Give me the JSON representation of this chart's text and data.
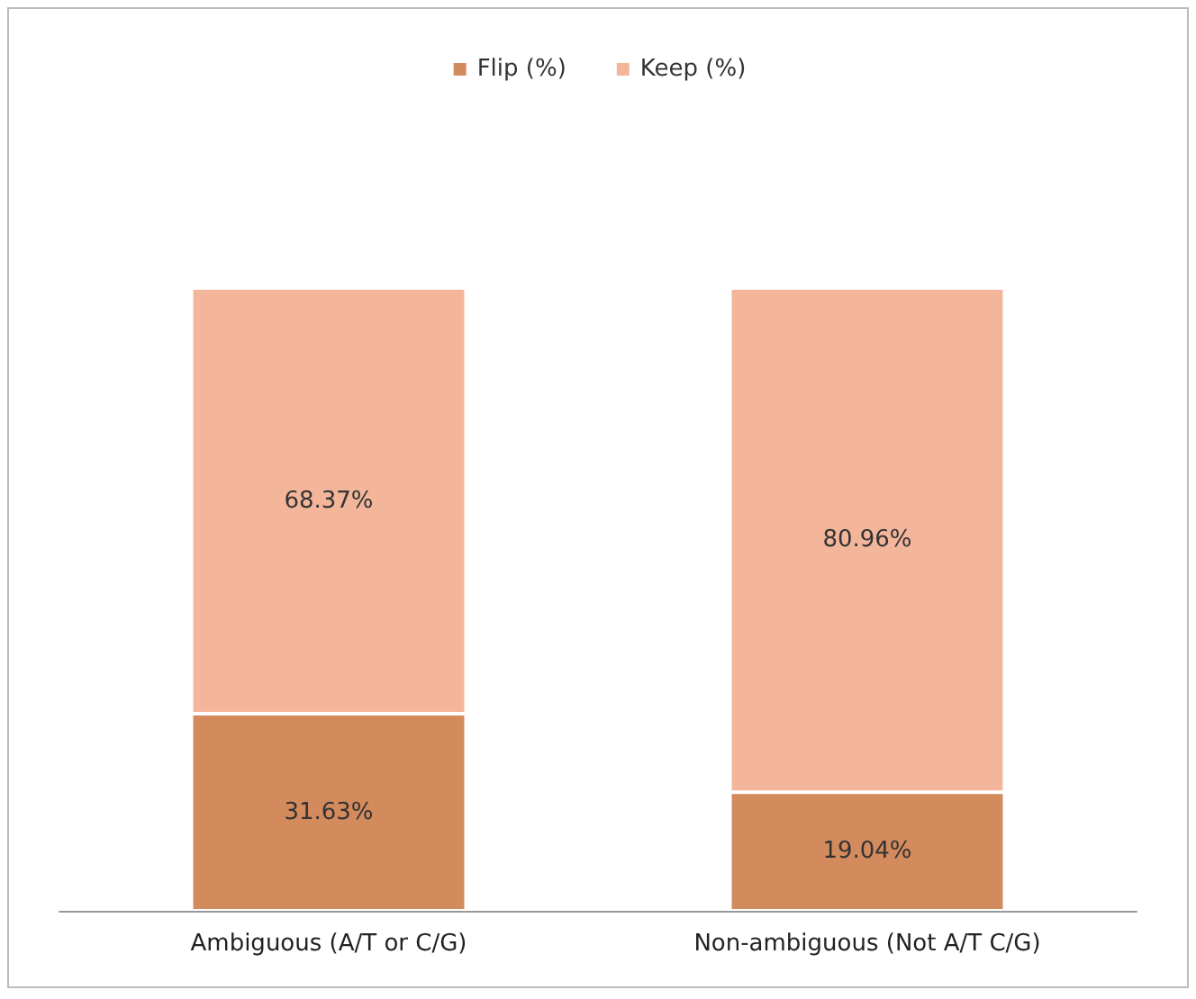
{
  "chart_data": {
    "type": "bar",
    "stacked": true,
    "categories": [
      "Ambiguous (A/T or C/G)",
      "Non-ambiguous (Not A/T C/G)"
    ],
    "series": [
      {
        "name": "Flip (%)",
        "color": "#d38b5d",
        "values": [
          31.63,
          19.04
        ],
        "value_labels": [
          "31.63%",
          "19.04%"
        ]
      },
      {
        "name": "Keep (%)",
        "color": "#f4b69b",
        "values": [
          68.37,
          80.96
        ],
        "value_labels": [
          "68.37%",
          "80.96%"
        ]
      }
    ],
    "ylim": [
      0,
      100
    ],
    "tick_labels": "x",
    "legend": "top"
  }
}
